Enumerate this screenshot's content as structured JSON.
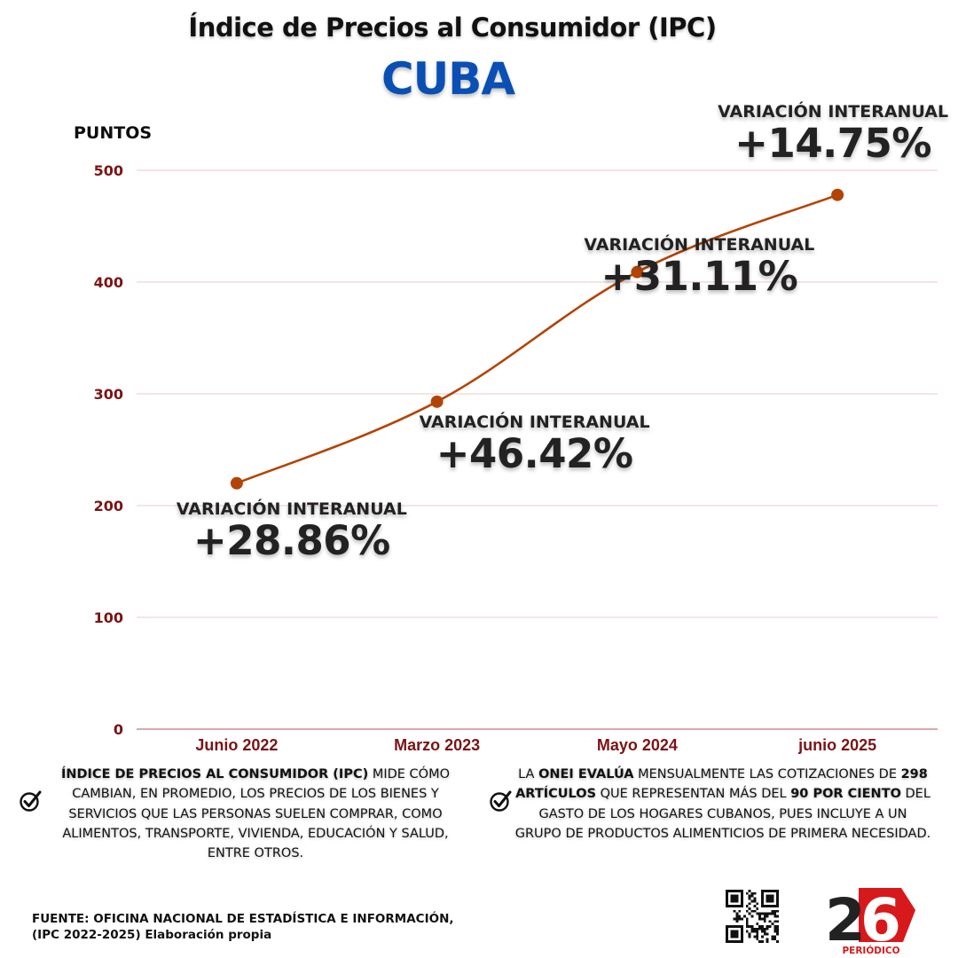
{
  "header": {
    "title": "Índice de Precios al Consumidor (IPC)",
    "subtitle": "CUBA"
  },
  "colors": {
    "line": "#b34407",
    "tick_text": "#7a1414",
    "grid": "#ecc8c8",
    "subtitle": "#0a4fb3",
    "logo_red": "#d7191c",
    "logo_dark": "#222222"
  },
  "chart_data": {
    "type": "line",
    "title": "Índice de Precios al Consumidor (IPC)",
    "subtitle": "CUBA",
    "ylabel": "PUNTOS",
    "xlabel": "",
    "categories": [
      "Junio 2022",
      "Marzo 2023",
      "Mayo 2024",
      "junio 2025"
    ],
    "series": [
      {
        "name": "IPC",
        "values": [
          220,
          293,
          409,
          478
        ]
      }
    ],
    "ylim": [
      0,
      500
    ],
    "yticks": [
      0,
      100,
      200,
      300,
      400,
      500
    ],
    "grid": true,
    "legend": "none",
    "annotations": [
      {
        "category": "Junio 2022",
        "label": "VARIACIÓN INTERANUAL",
        "value": "+28.86%"
      },
      {
        "category": "Marzo 2023",
        "label": "VARIACIÓN INTERANUAL",
        "value": "+46.42%"
      },
      {
        "category": "Mayo 2024",
        "label": "VARIACIÓN INTERANUAL",
        "value": "+31.11%"
      },
      {
        "category": "junio 2025",
        "label": "VARIACIÓN INTERANUAL",
        "value": "+14.75%"
      }
    ]
  },
  "notes": {
    "left": {
      "bold": "ÍNDICE DE PRECIOS AL CONSUMIDOR (IPC)",
      "rest": " MIDE CÓMO CAMBIAN, EN PROMEDIO, LOS PRECIOS DE LOS BIENES Y SERVICIOS QUE LAS PERSONAS SUELEN COMPRAR, COMO ALIMENTOS, TRANSPORTE, VIVIENDA, EDUCACIÓN Y SALUD, ENTRE OTROS."
    },
    "right": {
      "p1": "LA ",
      "b1": "ONEI EVALÚA",
      "p2": " MENSUALMENTE LAS COTIZACIONES DE ",
      "b2": "298 ARTÍCULOS",
      "p3": " QUE REPRESENTAN MÁS DEL ",
      "b3": "90 POR CIENTO",
      "p4": " DEL GASTO DE LOS HOGARES CUBANOS, PUES INCLUYE A UN GRUPO DE PRODUCTOS ALIMENTICIOS DE PRIMERA NECESIDAD."
    }
  },
  "footer": {
    "source_line1": "FUENTE: OFICINA NACIONAL DE ESTADÍSTICA E INFORMACIÓN,",
    "source_line2": "(IPC 2022-2025) Elaboración propia",
    "logo_number": "26",
    "logo_text": "PERIÓDICO",
    "icons": {
      "check": "check-circle-icon",
      "qr": "qr-code-icon"
    }
  }
}
